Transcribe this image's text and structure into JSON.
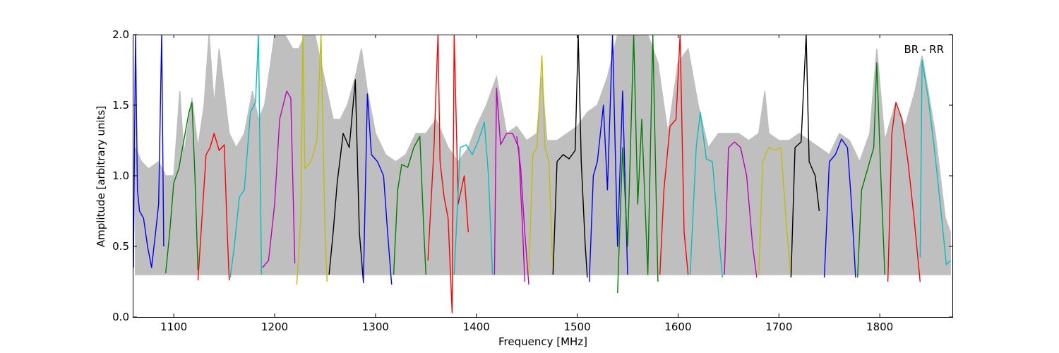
{
  "chart_data": {
    "type": "line",
    "xlabel": "Frequency [MHz]",
    "ylabel": "Amplitude [arbitrary units]",
    "annotation": "BR - RR",
    "xlim": [
      1060,
      1872
    ],
    "ylim": [
      0.0,
      2.0
    ],
    "xticks": [
      1100,
      1200,
      1300,
      1400,
      1500,
      1600,
      1700,
      1800
    ],
    "xtick_labels": [
      "1100",
      "1200",
      "1300",
      "1400",
      "1500",
      "1600",
      "1700",
      "1800"
    ],
    "yticks": [
      0.0,
      0.5,
      1.0,
      1.5,
      2.0
    ],
    "ytick_labels": [
      "0.0",
      "0.5",
      "1.0",
      "1.5",
      "2.0"
    ],
    "grid": false,
    "envelope_color": "#bfbfbf",
    "envelope_upper": [
      [
        1062,
        1.2
      ],
      [
        1068,
        1.1
      ],
      [
        1075,
        1.05
      ],
      [
        1085,
        1.1
      ],
      [
        1092,
        1.0
      ],
      [
        1100,
        1.0
      ],
      [
        1106,
        1.6
      ],
      [
        1110,
        1.15
      ],
      [
        1118,
        1.55
      ],
      [
        1124,
        1.2
      ],
      [
        1130,
        1.5
      ],
      [
        1135,
        2.0
      ],
      [
        1140,
        1.5
      ],
      [
        1145,
        1.9
      ],
      [
        1150,
        1.6
      ],
      [
        1155,
        1.3
      ],
      [
        1162,
        1.2
      ],
      [
        1170,
        1.3
      ],
      [
        1178,
        1.6
      ],
      [
        1184,
        1.4
      ],
      [
        1190,
        1.5
      ],
      [
        1196,
        1.8
      ],
      [
        1200,
        2.0
      ],
      [
        1210,
        2.0
      ],
      [
        1218,
        1.9
      ],
      [
        1224,
        1.9
      ],
      [
        1230,
        2.0
      ],
      [
        1240,
        2.0
      ],
      [
        1246,
        1.8
      ],
      [
        1252,
        1.6
      ],
      [
        1258,
        1.4
      ],
      [
        1265,
        1.4
      ],
      [
        1272,
        1.5
      ],
      [
        1280,
        1.7
      ],
      [
        1286,
        1.9
      ],
      [
        1292,
        1.6
      ],
      [
        1300,
        1.3
      ],
      [
        1310,
        1.15
      ],
      [
        1320,
        1.1
      ],
      [
        1330,
        1.15
      ],
      [
        1340,
        1.3
      ],
      [
        1350,
        1.3
      ],
      [
        1360,
        1.4
      ],
      [
        1372,
        1.2
      ],
      [
        1382,
        1.1
      ],
      [
        1392,
        1.2
      ],
      [
        1400,
        1.35
      ],
      [
        1410,
        1.5
      ],
      [
        1420,
        1.7
      ],
      [
        1430,
        1.3
      ],
      [
        1440,
        1.35
      ],
      [
        1450,
        1.25
      ],
      [
        1460,
        1.3
      ],
      [
        1465,
        1.7
      ],
      [
        1470,
        1.25
      ],
      [
        1480,
        1.25
      ],
      [
        1490,
        1.3
      ],
      [
        1500,
        1.35
      ],
      [
        1510,
        1.45
      ],
      [
        1520,
        1.5
      ],
      [
        1530,
        1.7
      ],
      [
        1540,
        2.0
      ],
      [
        1550,
        2.0
      ],
      [
        1560,
        2.0
      ],
      [
        1570,
        2.0
      ],
      [
        1580,
        1.8
      ],
      [
        1590,
        1.3
      ],
      [
        1600,
        1.8
      ],
      [
        1610,
        1.9
      ],
      [
        1620,
        1.5
      ],
      [
        1630,
        1.2
      ],
      [
        1640,
        1.3
      ],
      [
        1650,
        1.3
      ],
      [
        1660,
        1.3
      ],
      [
        1670,
        1.25
      ],
      [
        1680,
        1.3
      ],
      [
        1686,
        1.6
      ],
      [
        1690,
        1.3
      ],
      [
        1700,
        1.25
      ],
      [
        1710,
        1.25
      ],
      [
        1720,
        1.3
      ],
      [
        1730,
        1.25
      ],
      [
        1740,
        1.2
      ],
      [
        1750,
        1.15
      ],
      [
        1760,
        1.3
      ],
      [
        1770,
        1.25
      ],
      [
        1780,
        1.1
      ],
      [
        1790,
        1.3
      ],
      [
        1797,
        1.9
      ],
      [
        1805,
        1.25
      ],
      [
        1815,
        1.5
      ],
      [
        1825,
        1.35
      ],
      [
        1835,
        1.6
      ],
      [
        1842,
        1.85
      ],
      [
        1848,
        1.6
      ],
      [
        1855,
        1.3
      ],
      [
        1865,
        0.7
      ],
      [
        1870,
        0.6
      ]
    ],
    "series": [
      {
        "color": "#0000ff",
        "values": [
          [
            1060,
            0.35
          ],
          [
            1062,
            2.0
          ],
          [
            1064,
            0.9
          ],
          [
            1066,
            0.75
          ],
          [
            1070,
            0.7
          ],
          [
            1074,
            0.5
          ],
          [
            1078,
            0.35
          ],
          [
            1082,
            0.6
          ],
          [
            1085,
            0.8
          ],
          [
            1088,
            2.0
          ],
          [
            1090,
            0.5
          ]
        ]
      },
      {
        "color": "#008000",
        "values": [
          [
            1092,
            0.31
          ],
          [
            1096,
            0.6
          ],
          [
            1100,
            0.95
          ],
          [
            1105,
            1.05
          ],
          [
            1110,
            1.25
          ],
          [
            1115,
            1.45
          ],
          [
            1118,
            1.52
          ],
          [
            1121,
            1.0
          ],
          [
            1124,
            0.33
          ]
        ]
      },
      {
        "color": "#ff0000",
        "values": [
          [
            1124,
            0.26
          ],
          [
            1128,
            0.7
          ],
          [
            1132,
            1.15
          ],
          [
            1136,
            1.2
          ],
          [
            1140,
            1.3
          ],
          [
            1145,
            1.18
          ],
          [
            1150,
            1.22
          ],
          [
            1153,
            0.6
          ],
          [
            1155,
            0.26
          ]
        ]
      },
      {
        "color": "#00bfbf",
        "values": [
          [
            1156,
            0.28
          ],
          [
            1160,
            0.5
          ],
          [
            1165,
            0.85
          ],
          [
            1170,
            0.9
          ],
          [
            1176,
            1.45
          ],
          [
            1181,
            1.52
          ],
          [
            1184,
            2.0
          ],
          [
            1187,
            0.3
          ]
        ]
      },
      {
        "color": "#bf00bf",
        "values": [
          [
            1188,
            0.35
          ],
          [
            1194,
            0.4
          ],
          [
            1200,
            0.8
          ],
          [
            1205,
            1.4
          ],
          [
            1212,
            1.6
          ],
          [
            1216,
            1.55
          ],
          [
            1220,
            0.38
          ]
        ]
      },
      {
        "color": "#bfbf00",
        "values": [
          [
            1222,
            0.23
          ],
          [
            1226,
            0.7
          ],
          [
            1228,
            2.0
          ],
          [
            1230,
            1.05
          ],
          [
            1236,
            1.1
          ],
          [
            1242,
            1.25
          ],
          [
            1246,
            2.0
          ],
          [
            1250,
            0.6
          ],
          [
            1252,
            0.25
          ]
        ]
      },
      {
        "color": "#000000",
        "values": [
          [
            1254,
            0.3
          ],
          [
            1258,
            0.6
          ],
          [
            1262,
            0.95
          ],
          [
            1268,
            1.3
          ],
          [
            1274,
            1.2
          ],
          [
            1280,
            1.68
          ],
          [
            1284,
            0.6
          ],
          [
            1288,
            0.25
          ]
        ]
      },
      {
        "color": "#0000ff",
        "values": [
          [
            1288,
            0.24
          ],
          [
            1292,
            1.58
          ],
          [
            1296,
            1.15
          ],
          [
            1302,
            1.1
          ],
          [
            1308,
            1.0
          ],
          [
            1312,
            0.6
          ],
          [
            1316,
            0.23
          ]
        ]
      },
      {
        "color": "#008000",
        "values": [
          [
            1318,
            0.3
          ],
          [
            1322,
            0.9
          ],
          [
            1326,
            1.08
          ],
          [
            1332,
            1.06
          ],
          [
            1338,
            1.2
          ],
          [
            1344,
            1.28
          ],
          [
            1348,
            0.6
          ],
          [
            1350,
            0.3
          ]
        ]
      },
      {
        "color": "#ff0000",
        "values": [
          [
            1352,
            0.4
          ],
          [
            1358,
            1.2
          ],
          [
            1362,
            2.0
          ],
          [
            1364,
            1.1
          ],
          [
            1368,
            0.85
          ],
          [
            1372,
            0.7
          ],
          [
            1376,
            0.03
          ],
          [
            1378,
            2.0
          ],
          [
            1382,
            0.8
          ],
          [
            1388,
            1.0
          ],
          [
            1392,
            0.6
          ]
        ]
      },
      {
        "color": "#00bfbf",
        "values": [
          [
            1378,
            0.3
          ],
          [
            1384,
            1.2
          ],
          [
            1390,
            1.22
          ],
          [
            1396,
            1.15
          ],
          [
            1402,
            1.25
          ],
          [
            1408,
            1.38
          ],
          [
            1412,
            1.0
          ],
          [
            1416,
            0.3
          ]
        ]
      },
      {
        "color": "#bf00bf",
        "values": [
          [
            1418,
            0.3
          ],
          [
            1420,
            1.62
          ],
          [
            1424,
            1.22
          ],
          [
            1430,
            1.3
          ],
          [
            1436,
            1.3
          ],
          [
            1442,
            1.2
          ],
          [
            1446,
            0.6
          ],
          [
            1448,
            0.25
          ]
        ]
      },
      {
        "color": "#bf00bf",
        "values": [
          [
            1440,
            1.28
          ],
          [
            1444,
            1.05
          ],
          [
            1448,
            0.6
          ],
          [
            1452,
            0.23
          ]
        ]
      },
      {
        "color": "#bfbf00",
        "values": [
          [
            1452,
            0.3
          ],
          [
            1456,
            1.15
          ],
          [
            1460,
            1.2
          ],
          [
            1465,
            1.85
          ],
          [
            1468,
            1.2
          ],
          [
            1472,
            1.1
          ],
          [
            1476,
            0.3
          ]
        ]
      },
      {
        "color": "#000000",
        "values": [
          [
            1476,
            0.3
          ],
          [
            1480,
            1.1
          ],
          [
            1486,
            1.15
          ],
          [
            1492,
            1.12
          ],
          [
            1498,
            1.18
          ],
          [
            1501,
            2.0
          ],
          [
            1504,
            1.1
          ],
          [
            1508,
            0.5
          ],
          [
            1510,
            0.28
          ]
        ]
      },
      {
        "color": "#0000ff",
        "values": [
          [
            1512,
            0.25
          ],
          [
            1516,
            1.0
          ],
          [
            1520,
            1.1
          ],
          [
            1526,
            1.5
          ],
          [
            1530,
            0.9
          ],
          [
            1535,
            2.0
          ],
          [
            1540,
            0.5
          ],
          [
            1545,
            1.6
          ],
          [
            1550,
            0.3
          ]
        ]
      },
      {
        "color": "#008000",
        "values": [
          [
            1540,
            0.17
          ],
          [
            1545,
            1.2
          ],
          [
            1550,
            0.5
          ],
          [
            1556,
            2.0
          ],
          [
            1560,
            0.8
          ],
          [
            1564,
            1.4
          ],
          [
            1570,
            0.3
          ],
          [
            1575,
            2.0
          ],
          [
            1580,
            0.25
          ]
        ]
      },
      {
        "color": "#ff0000",
        "values": [
          [
            1582,
            0.3
          ],
          [
            1586,
            0.9
          ],
          [
            1592,
            1.35
          ],
          [
            1598,
            1.4
          ],
          [
            1602,
            2.0
          ],
          [
            1606,
            0.6
          ],
          [
            1610,
            0.3
          ]
        ]
      },
      {
        "color": "#00bfbf",
        "values": [
          [
            1612,
            0.3
          ],
          [
            1618,
            1.2
          ],
          [
            1622,
            1.45
          ],
          [
            1628,
            1.12
          ],
          [
            1634,
            1.1
          ],
          [
            1640,
            0.6
          ],
          [
            1644,
            0.28
          ]
        ]
      },
      {
        "color": "#bf00bf",
        "values": [
          [
            1646,
            0.3
          ],
          [
            1650,
            1.2
          ],
          [
            1656,
            1.24
          ],
          [
            1662,
            1.2
          ],
          [
            1668,
            1.0
          ],
          [
            1674,
            0.5
          ],
          [
            1678,
            0.28
          ]
        ]
      },
      {
        "color": "#bfbf00",
        "values": [
          [
            1680,
            0.3
          ],
          [
            1684,
            1.1
          ],
          [
            1690,
            1.2
          ],
          [
            1696,
            1.18
          ],
          [
            1702,
            1.2
          ],
          [
            1708,
            0.6
          ],
          [
            1712,
            0.28
          ]
        ]
      },
      {
        "color": "#000000",
        "values": [
          [
            1712,
            0.28
          ],
          [
            1716,
            1.2
          ],
          [
            1722,
            1.24
          ],
          [
            1727,
            2.0
          ],
          [
            1730,
            1.1
          ],
          [
            1736,
            1.0
          ],
          [
            1740,
            0.75
          ]
        ]
      },
      {
        "color": "#0000ff",
        "values": [
          [
            1745,
            0.28
          ],
          [
            1750,
            1.1
          ],
          [
            1756,
            1.15
          ],
          [
            1762,
            1.26
          ],
          [
            1768,
            1.2
          ],
          [
            1772,
            0.8
          ],
          [
            1776,
            0.28
          ]
        ]
      },
      {
        "color": "#008000",
        "values": [
          [
            1778,
            0.28
          ],
          [
            1782,
            0.9
          ],
          [
            1788,
            1.05
          ],
          [
            1794,
            1.2
          ],
          [
            1797,
            1.8
          ],
          [
            1801,
            1.0
          ],
          [
            1805,
            0.3
          ]
        ]
      },
      {
        "color": "#ff0000",
        "values": [
          [
            1808,
            0.25
          ],
          [
            1812,
            1.3
          ],
          [
            1816,
            1.52
          ],
          [
            1822,
            1.4
          ],
          [
            1828,
            1.1
          ],
          [
            1834,
            0.7
          ],
          [
            1840,
            0.25
          ]
        ]
      },
      {
        "color": "#00bfbf",
        "values": [
          [
            1840,
            0.42
          ],
          [
            1842,
            1.82
          ],
          [
            1848,
            1.55
          ],
          [
            1854,
            1.2
          ],
          [
            1860,
            0.8
          ],
          [
            1866,
            0.37
          ],
          [
            1870,
            0.4
          ]
        ]
      }
    ]
  }
}
